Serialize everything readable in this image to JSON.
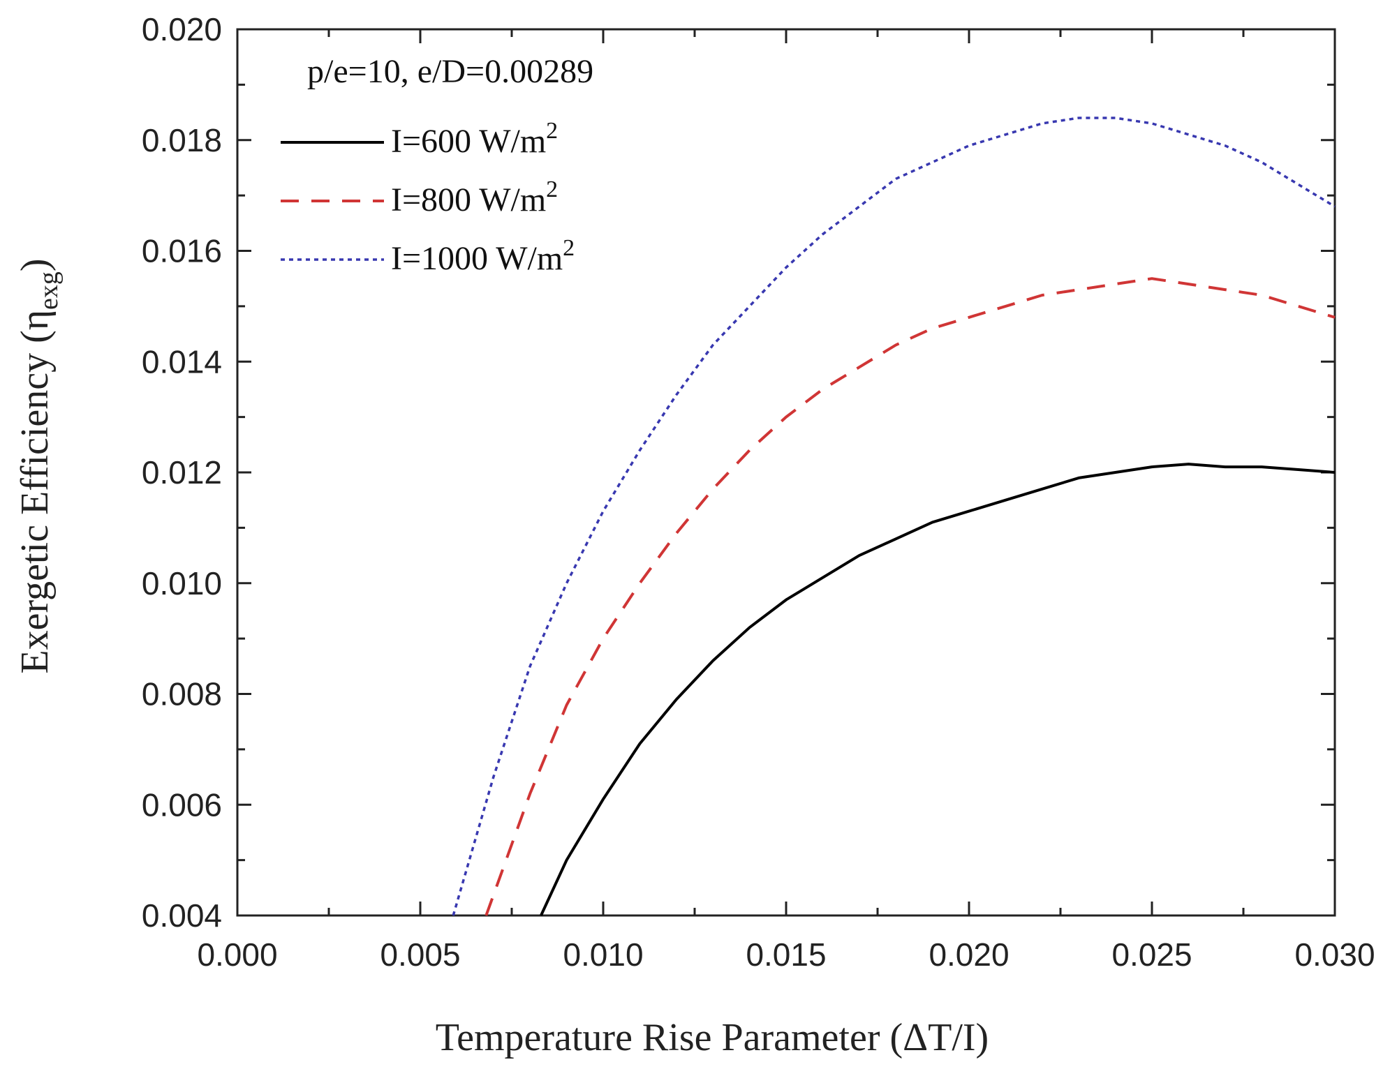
{
  "chart_data": {
    "type": "line",
    "title": "",
    "annotation": "p/e=10, e/D=0.00289",
    "xlabel": "Temperature Rise Parameter (ΔT/I)",
    "ylabel_main": "Exergetic Efficiency (η",
    "ylabel_sub": "exg",
    "ylabel_close": ")",
    "xlim": [
      0.0,
      0.03
    ],
    "ylim": [
      0.004,
      0.02
    ],
    "xticks": [
      0.0,
      0.005,
      0.01,
      0.015,
      0.02,
      0.025,
      0.03
    ],
    "xtick_labels": [
      "0.000",
      "0.005",
      "0.010",
      "0.015",
      "0.020",
      "0.025",
      "0.030"
    ],
    "yticks": [
      0.004,
      0.006,
      0.008,
      0.01,
      0.012,
      0.014,
      0.016,
      0.018,
      0.02
    ],
    "ytick_labels": [
      "0.004",
      "0.006",
      "0.008",
      "0.010",
      "0.012",
      "0.014",
      "0.016",
      "0.018",
      "0.020"
    ],
    "grid": false,
    "legend_position": "top-left",
    "series": [
      {
        "name": "I=600 W/m²",
        "label_main": "I=600 W/m",
        "label_sup": "2",
        "color": "#000000",
        "style": "solid",
        "x": [
          0.0083,
          0.009,
          0.01,
          0.011,
          0.012,
          0.013,
          0.014,
          0.015,
          0.016,
          0.017,
          0.018,
          0.019,
          0.02,
          0.021,
          0.022,
          0.023,
          0.024,
          0.025,
          0.026,
          0.027,
          0.028,
          0.029,
          0.03
        ],
        "y": [
          0.004,
          0.005,
          0.0061,
          0.0071,
          0.0079,
          0.0086,
          0.0092,
          0.0097,
          0.0101,
          0.0105,
          0.0108,
          0.0111,
          0.0113,
          0.0115,
          0.0117,
          0.0119,
          0.012,
          0.0121,
          0.01215,
          0.0121,
          0.0121,
          0.01205,
          0.012
        ]
      },
      {
        "name": "I=800 W/m²",
        "label_main": "I=800 W/m",
        "label_sup": "2",
        "color": "#d03535",
        "style": "dashed",
        "x": [
          0.0068,
          0.008,
          0.009,
          0.01,
          0.011,
          0.012,
          0.013,
          0.014,
          0.015,
          0.016,
          0.017,
          0.018,
          0.019,
          0.02,
          0.021,
          0.022,
          0.023,
          0.024,
          0.025,
          0.026,
          0.027,
          0.028,
          0.029,
          0.03
        ],
        "y": [
          0.004,
          0.0062,
          0.0078,
          0.009,
          0.01,
          0.0109,
          0.0117,
          0.0124,
          0.013,
          0.0135,
          0.0139,
          0.0143,
          0.0146,
          0.0148,
          0.015,
          0.0152,
          0.0153,
          0.0154,
          0.0155,
          0.0154,
          0.0153,
          0.0152,
          0.015,
          0.0148
        ]
      },
      {
        "name": "I=1000 W/m²",
        "label_main": "I=1000 W/m",
        "label_sup": "2",
        "color": "#3838b0",
        "style": "dotted",
        "x": [
          0.0059,
          0.007,
          0.008,
          0.009,
          0.01,
          0.011,
          0.012,
          0.013,
          0.014,
          0.015,
          0.016,
          0.017,
          0.018,
          0.019,
          0.02,
          0.021,
          0.022,
          0.023,
          0.024,
          0.025,
          0.026,
          0.027,
          0.028,
          0.029,
          0.03
        ],
        "y": [
          0.004,
          0.0065,
          0.0085,
          0.01,
          0.0113,
          0.0124,
          0.0134,
          0.0143,
          0.015,
          0.0157,
          0.0163,
          0.0168,
          0.0173,
          0.0176,
          0.0179,
          0.0181,
          0.0183,
          0.0184,
          0.0184,
          0.0183,
          0.0181,
          0.0179,
          0.0176,
          0.0172,
          0.0168
        ]
      }
    ]
  }
}
